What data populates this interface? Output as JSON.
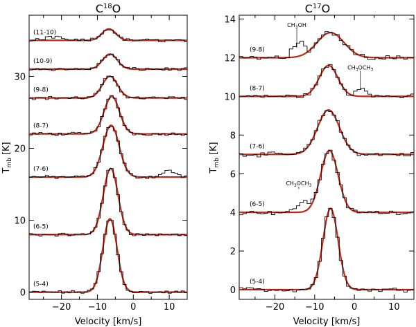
{
  "chart_data": [
    {
      "type": "line",
      "title": "C18O",
      "title_main": "C",
      "title_sup": "18",
      "title_tail": "O",
      "xlabel": "Velocity [km/s]",
      "ylabel_main": "T",
      "ylabel_sub": "mb",
      "ylabel_unit": "[K]",
      "xlim": [
        -29,
        15
      ],
      "ylim": [
        -1,
        38.5
      ],
      "xticks": [
        -20,
        -10,
        0,
        10
      ],
      "xtick_labels": [
        "−20",
        "−10",
        "0",
        "10"
      ],
      "yticks": [
        0,
        10,
        20,
        30
      ],
      "ytick_labels": [
        "0",
        "10",
        "20",
        "30"
      ],
      "series": [
        {
          "name": "(5-4)",
          "baseline": 0,
          "peak": 10.2,
          "center": -6.5,
          "fwhm": 4.6
        },
        {
          "name": "(6-5)",
          "baseline": 8,
          "peak": 9.2,
          "center": -6.3,
          "fwhm": 4.8
        },
        {
          "name": "(7-6)",
          "baseline": 16,
          "peak": 7.2,
          "center": -6.2,
          "fwhm": 5.3
        },
        {
          "name": "(8-7)",
          "baseline": 22,
          "peak": 5.2,
          "center": -6.0,
          "fwhm": 5.0
        },
        {
          "name": "(9-8)",
          "baseline": 27,
          "peak": 3.0,
          "center": -6.5,
          "fwhm": 5.0
        },
        {
          "name": "(10-9)",
          "baseline": 31,
          "peak": 2.1,
          "center": -6.5,
          "fwhm": 4.8
        },
        {
          "name": "(11-10)",
          "baseline": 35,
          "peak": 1.6,
          "center": -6.8,
          "fwhm": 4.5
        }
      ],
      "annotations": []
    },
    {
      "type": "line",
      "title": "C17O",
      "title_main": "C",
      "title_sup": "17",
      "title_tail": "O",
      "xlabel": "Velocity [km/s]",
      "ylabel_main": "T",
      "ylabel_sub": "mb",
      "ylabel_unit": "[K]",
      "xlim": [
        -29,
        15
      ],
      "ylim": [
        -0.5,
        14.2
      ],
      "xticks": [
        -20,
        -10,
        0,
        10
      ],
      "xtick_labels": [
        "−20",
        "−10",
        "0",
        "10"
      ],
      "yticks": [
        0,
        2,
        4,
        6,
        8,
        10,
        12,
        14
      ],
      "ytick_labels": [
        "0",
        "2",
        "4",
        "6",
        "8",
        "10",
        "12",
        "14"
      ],
      "series": [
        {
          "name": "(5-4)",
          "baseline": 0,
          "peak": 4.2,
          "center": -6.0,
          "fwhm": 4.5
        },
        {
          "name": "(6-5)",
          "baseline": 4,
          "peak": 3.2,
          "center": -6.3,
          "fwhm": 5.2
        },
        {
          "name": "(7-6)",
          "baseline": 7,
          "peak": 2.3,
          "center": -6.5,
          "fwhm": 6.5
        },
        {
          "name": "(8-7)",
          "baseline": 10,
          "peak": 1.6,
          "center": -6.5,
          "fwhm": 5.5
        },
        {
          "name": "(9-8)",
          "baseline": 12,
          "peak": 1.3,
          "center": -6.0,
          "fwhm": 8.0
        }
      ],
      "annotations": [
        {
          "text_main": "CH",
          "text_sub": "3",
          "text_tail": "OH",
          "label": "CH3OH",
          "x": -14.5,
          "y": 12.5,
          "text_y": 13.6
        },
        {
          "text_main": "CH",
          "text_sub": "3",
          "text_tail": "OCH",
          "text_sub2": "3",
          "label": "CH3OCH3",
          "x": 1.5,
          "y": 10.4,
          "text_y": 11.4
        },
        {
          "text_main": "CH",
          "text_sub": "3",
          "text_tail": "OCH",
          "text_sub2": "3",
          "label": "CH3OCH3",
          "x": -14.0,
          "y": 5.2,
          "text_y": 5.4
        }
      ]
    }
  ]
}
